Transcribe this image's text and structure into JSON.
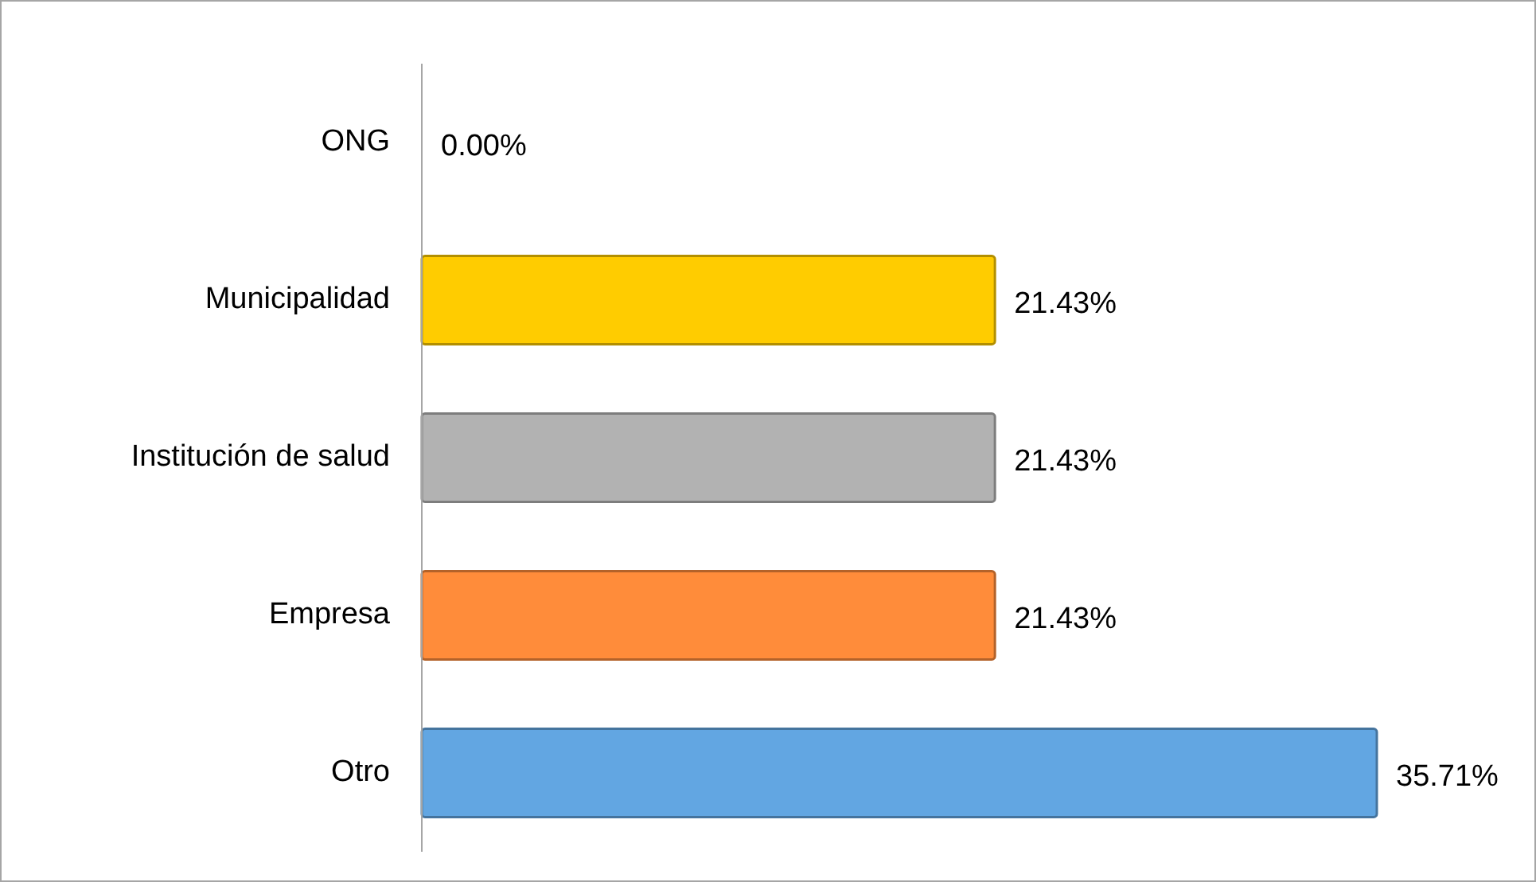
{
  "chart_data": {
    "type": "bar",
    "orientation": "horizontal",
    "categories": [
      "ONG",
      "Municipalidad",
      "Institución de salud",
      "Empresa",
      "Otro"
    ],
    "values": [
      0,
      21.43,
      21.43,
      21.43,
      35.71
    ],
    "colors": [
      "#4f81bd",
      "#ffcc00",
      "#b2b2b2",
      "#ff8c3a",
      "#62a6e2"
    ],
    "value_labels": [
      "0.00%",
      "21.43%",
      "21.43%",
      "21.43%",
      "35.71%"
    ]
  }
}
